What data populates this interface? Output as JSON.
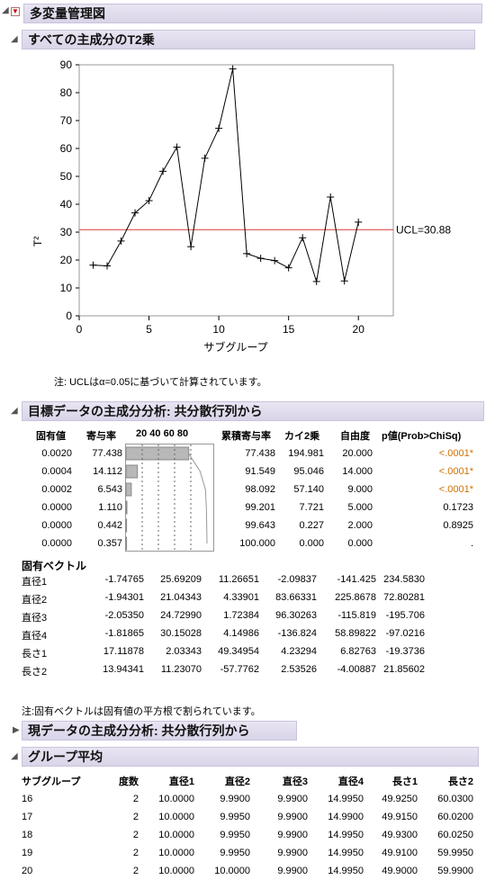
{
  "top": {
    "title": "多変量管理図"
  },
  "t2": {
    "title": "すべての主成分のT2乗",
    "ylabel": "T²",
    "xlabel": "サブグループ",
    "ucl_label": "UCL=30.88",
    "note": "注: UCLはα=0.05に基づいて計算されています。"
  },
  "chart_data": {
    "type": "line",
    "x": [
      1,
      2,
      3,
      4,
      5,
      6,
      7,
      8,
      9,
      10,
      11,
      12,
      13,
      14,
      15,
      16,
      17,
      18,
      19,
      20
    ],
    "values": [
      18.2,
      17.9,
      26.8,
      36.9,
      41.3,
      51.8,
      60.5,
      24.8,
      56.5,
      67.2,
      88.5,
      22.3,
      20.6,
      19.8,
      17.2,
      28.0,
      12.3,
      42.6,
      12.5,
      33.6
    ],
    "ucl": 30.88,
    "xlim": [
      0,
      22.5
    ],
    "ylim": [
      0,
      90
    ],
    "xticks": [
      0,
      5,
      10,
      15,
      20
    ],
    "yticks": [
      0,
      10,
      20,
      30,
      40,
      50,
      60,
      70,
      80,
      90
    ],
    "xlabel": "サブグループ",
    "ylabel": "T²",
    "colors": {
      "line": "#000000",
      "ucl": "#e03a3a"
    }
  },
  "pca_target": {
    "title": "目標データの主成分分析: 共分散行列から",
    "headers": [
      "固有値",
      "寄与率",
      "20 40 60 80",
      "累積寄与率",
      "カイ2乗",
      "自由度",
      "p値(Prob>ChiSq)"
    ],
    "rows": [
      {
        "eig": "0.0020",
        "pct": "77.438",
        "bar": 77.438,
        "cum": "77.438",
        "chi": "194.981",
        "df": "20.000",
        "p": "<.0001*",
        "sig": true
      },
      {
        "eig": "0.0004",
        "pct": "14.112",
        "bar": 14.112,
        "cum": "91.549",
        "chi": "95.046",
        "df": "14.000",
        "p": "<.0001*",
        "sig": true
      },
      {
        "eig": "0.0002",
        "pct": "6.543",
        "bar": 6.543,
        "cum": "98.092",
        "chi": "57.140",
        "df": "9.000",
        "p": "<.0001*",
        "sig": true
      },
      {
        "eig": "0.0000",
        "pct": "1.110",
        "bar": 1.11,
        "cum": "99.201",
        "chi": "7.721",
        "df": "5.000",
        "p": "0.1723",
        "sig": false
      },
      {
        "eig": "0.0000",
        "pct": "0.442",
        "bar": 0.442,
        "cum": "99.643",
        "chi": "0.227",
        "df": "2.000",
        "p": "0.8925",
        "sig": false
      },
      {
        "eig": "0.0000",
        "pct": "0.357",
        "bar": 0.357,
        "cum": "100.000",
        "chi": "0.000",
        "df": "0.000",
        "p": ".",
        "sig": false
      }
    ],
    "eigvec_title": "固有ベクトル",
    "eigvec": [
      {
        "label": "直径1",
        "v": [
          "-1.74765",
          "25.69209",
          "11.26651",
          "-2.09837",
          "-141.425",
          "234.5830"
        ]
      },
      {
        "label": "直径2",
        "v": [
          "-1.94301",
          "21.04343",
          "4.33901",
          "83.66331",
          "225.8678",
          "72.80281"
        ]
      },
      {
        "label": "直径3",
        "v": [
          "-2.05350",
          "24.72990",
          "1.72384",
          "96.30263",
          "-115.819",
          "-195.706"
        ]
      },
      {
        "label": "直径4",
        "v": [
          "-1.81865",
          "30.15028",
          "4.14986",
          "-136.824",
          "58.89822",
          "-97.0216"
        ]
      },
      {
        "label": "長さ1",
        "v": [
          "17.11878",
          "2.03343",
          "49.34954",
          "4.23294",
          "6.82763",
          "-19.3736"
        ]
      },
      {
        "label": "長さ2",
        "v": [
          "13.94341",
          "11.23070",
          "-57.7762",
          "2.53526",
          "-4.00887",
          "21.85602"
        ]
      }
    ],
    "note": "注:固有ベクトルは固有値の平方根で割られています。"
  },
  "pca_current": {
    "title": "現データの主成分分析: 共分散行列から"
  },
  "group_mean": {
    "title": "グループ平均",
    "headers": [
      "サブグループ",
      "度数",
      "直径1",
      "直径2",
      "直径3",
      "直径4",
      "長さ1",
      "長さ2"
    ],
    "rows": [
      [
        "16",
        "2",
        "10.0000",
        "9.9900",
        "9.9900",
        "14.9950",
        "49.9250",
        "60.0300"
      ],
      [
        "17",
        "2",
        "10.0000",
        "9.9950",
        "9.9900",
        "14.9900",
        "49.9150",
        "60.0200"
      ],
      [
        "18",
        "2",
        "10.0000",
        "9.9950",
        "9.9900",
        "14.9950",
        "49.9300",
        "60.0250"
      ],
      [
        "19",
        "2",
        "10.0000",
        "9.9950",
        "9.9900",
        "14.9950",
        "49.9100",
        "59.9950"
      ],
      [
        "20",
        "2",
        "10.0000",
        "10.0000",
        "9.9900",
        "14.9950",
        "49.9000",
        "59.9900"
      ]
    ]
  }
}
